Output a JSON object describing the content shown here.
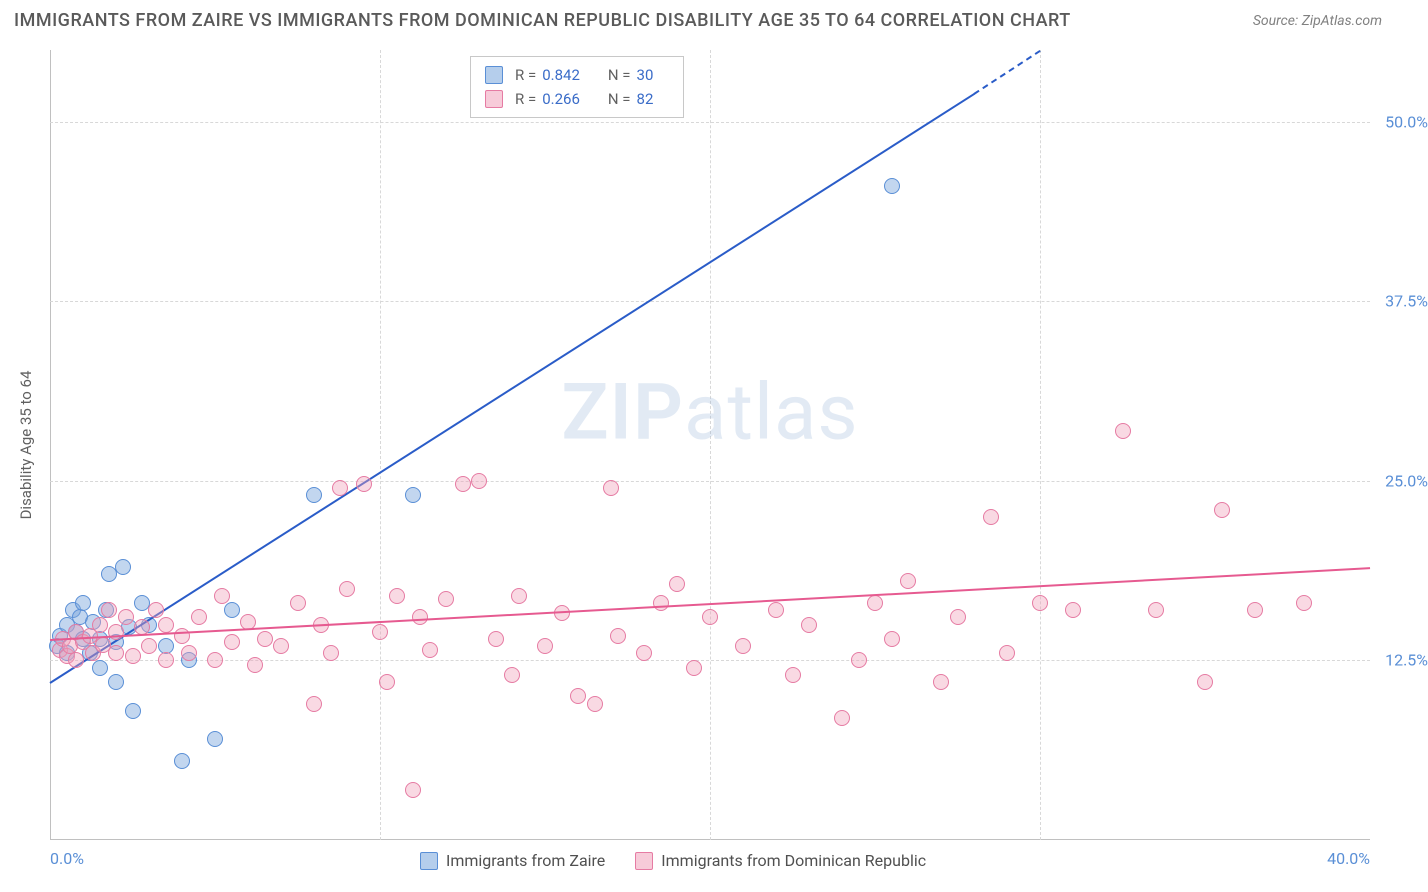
{
  "header": {
    "title": "IMMIGRANTS FROM ZAIRE VS IMMIGRANTS FROM DOMINICAN REPUBLIC DISABILITY AGE 35 TO 64 CORRELATION CHART",
    "source": "Source: ZipAtlas.com"
  },
  "chart": {
    "type": "scatter",
    "y_axis_label": "Disability Age 35 to 64",
    "watermark_a": "ZIP",
    "watermark_b": "atlas",
    "xlim": [
      0,
      40
    ],
    "ylim": [
      0,
      55
    ],
    "x_ticks": [
      0,
      10,
      20,
      30,
      40
    ],
    "x_tick_labels": [
      "0.0%",
      "",
      "",
      "",
      "40.0%"
    ],
    "y_ticks": [
      12.5,
      25.0,
      37.5,
      50.0
    ],
    "y_tick_labels": [
      "12.5%",
      "25.0%",
      "37.5%",
      "50.0%"
    ],
    "grid_color": "#d8d8d8",
    "background_color": "#ffffff",
    "series": [
      {
        "name": "Immigrants from Zaire",
        "color_fill": "rgba(120,165,220,0.45)",
        "color_stroke": "#5a8fd6",
        "trend_color": "#2a5cc8",
        "r": "0.842",
        "n": "30",
        "trend": {
          "x1": 0,
          "y1": 11.0,
          "x2": 28,
          "y2": 52.0
        },
        "trend_dash": {
          "x1": 28,
          "y1": 52.0,
          "x2": 30,
          "y2": 55.0
        },
        "points": [
          [
            0.2,
            13.5
          ],
          [
            0.3,
            14.2
          ],
          [
            0.5,
            13.0
          ],
          [
            0.5,
            15.0
          ],
          [
            0.7,
            16.0
          ],
          [
            0.8,
            14.5
          ],
          [
            0.9,
            15.5
          ],
          [
            1.0,
            14.0
          ],
          [
            1.0,
            16.5
          ],
          [
            1.2,
            13.0
          ],
          [
            1.3,
            15.2
          ],
          [
            1.5,
            12.0
          ],
          [
            1.5,
            14.0
          ],
          [
            1.7,
            16.0
          ],
          [
            1.8,
            18.5
          ],
          [
            2.0,
            11.0
          ],
          [
            2.0,
            13.8
          ],
          [
            2.2,
            19.0
          ],
          [
            2.4,
            14.8
          ],
          [
            2.5,
            9.0
          ],
          [
            2.8,
            16.5
          ],
          [
            3.0,
            15.0
          ],
          [
            3.5,
            13.5
          ],
          [
            4.0,
            5.5
          ],
          [
            4.2,
            12.5
          ],
          [
            5.0,
            7.0
          ],
          [
            5.5,
            16.0
          ],
          [
            8.0,
            24.0
          ],
          [
            11.0,
            24.0
          ],
          [
            25.5,
            45.5
          ]
        ]
      },
      {
        "name": "Immigrants from Dominican Republic",
        "color_fill": "rgba(240,160,185,0.40)",
        "color_stroke": "#e67ba3",
        "trend_color": "#e65a90",
        "r": "0.266",
        "n": "82",
        "trend": {
          "x1": 0,
          "y1": 14.0,
          "x2": 40,
          "y2": 19.0
        },
        "points": [
          [
            0.3,
            13.2
          ],
          [
            0.4,
            14.0
          ],
          [
            0.5,
            12.8
          ],
          [
            0.6,
            13.5
          ],
          [
            0.8,
            14.5
          ],
          [
            0.8,
            12.5
          ],
          [
            1.0,
            13.8
          ],
          [
            1.2,
            14.2
          ],
          [
            1.3,
            13.0
          ],
          [
            1.5,
            15.0
          ],
          [
            1.6,
            13.6
          ],
          [
            1.8,
            16.0
          ],
          [
            2.0,
            14.5
          ],
          [
            2.0,
            13.0
          ],
          [
            2.3,
            15.5
          ],
          [
            2.5,
            12.8
          ],
          [
            2.8,
            14.8
          ],
          [
            3.0,
            13.5
          ],
          [
            3.2,
            16.0
          ],
          [
            3.5,
            15.0
          ],
          [
            3.5,
            12.5
          ],
          [
            4.0,
            14.2
          ],
          [
            4.2,
            13.0
          ],
          [
            4.5,
            15.5
          ],
          [
            5.0,
            12.5
          ],
          [
            5.2,
            17.0
          ],
          [
            5.5,
            13.8
          ],
          [
            6.0,
            15.2
          ],
          [
            6.2,
            12.2
          ],
          [
            6.5,
            14.0
          ],
          [
            7.0,
            13.5
          ],
          [
            7.5,
            16.5
          ],
          [
            8.0,
            9.5
          ],
          [
            8.2,
            15.0
          ],
          [
            8.5,
            13.0
          ],
          [
            8.8,
            24.5
          ],
          [
            9.0,
            17.5
          ],
          [
            9.5,
            24.8
          ],
          [
            10.0,
            14.5
          ],
          [
            10.2,
            11.0
          ],
          [
            10.5,
            17.0
          ],
          [
            11.0,
            3.5
          ],
          [
            11.2,
            15.5
          ],
          [
            11.5,
            13.2
          ],
          [
            12.0,
            16.8
          ],
          [
            12.5,
            24.8
          ],
          [
            13.0,
            25.0
          ],
          [
            13.5,
            14.0
          ],
          [
            14.0,
            11.5
          ],
          [
            14.2,
            17.0
          ],
          [
            15.0,
            13.5
          ],
          [
            15.5,
            15.8
          ],
          [
            16.0,
            10.0
          ],
          [
            16.5,
            9.5
          ],
          [
            17.0,
            24.5
          ],
          [
            17.2,
            14.2
          ],
          [
            18.0,
            13.0
          ],
          [
            18.5,
            16.5
          ],
          [
            19.0,
            17.8
          ],
          [
            19.5,
            12.0
          ],
          [
            20.0,
            15.5
          ],
          [
            21.0,
            13.5
          ],
          [
            22.0,
            16.0
          ],
          [
            22.5,
            11.5
          ],
          [
            23.0,
            15.0
          ],
          [
            24.0,
            8.5
          ],
          [
            24.5,
            12.5
          ],
          [
            25.0,
            16.5
          ],
          [
            25.5,
            14.0
          ],
          [
            26.0,
            18.0
          ],
          [
            27.0,
            11.0
          ],
          [
            27.5,
            15.5
          ],
          [
            28.5,
            22.5
          ],
          [
            29.0,
            13.0
          ],
          [
            30.0,
            16.5
          ],
          [
            31.0,
            16.0
          ],
          [
            32.5,
            28.5
          ],
          [
            33.5,
            16.0
          ],
          [
            35.0,
            11.0
          ],
          [
            35.5,
            23.0
          ],
          [
            36.5,
            16.0
          ],
          [
            38.0,
            16.5
          ]
        ]
      }
    ],
    "legend_bottom": [
      {
        "label": "Immigrants from Zaire",
        "swatch": "blue"
      },
      {
        "label": "Immigrants from Dominican Republic",
        "swatch": "pink"
      }
    ]
  }
}
